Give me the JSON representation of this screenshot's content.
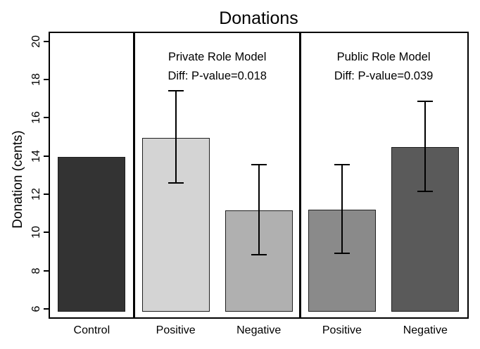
{
  "chart_data": {
    "type": "bar",
    "title": "Donations",
    "ylabel": "Donation (cents)",
    "xlabel": "",
    "ylim": [
      5.5,
      20.5
    ],
    "yticks": [
      6,
      8,
      10,
      12,
      14,
      16,
      18,
      20
    ],
    "grid": false,
    "legend_position": "none",
    "background": "#ffffff",
    "axis_color": "#000000",
    "panels": [
      {
        "header": "",
        "subheader": "",
        "bars": [
          {
            "category": "Control",
            "value": 13.95,
            "ci_low": null,
            "ci_high": null,
            "fill": "#333333"
          }
        ]
      },
      {
        "header": "Private Role Model",
        "subheader": "Diff: P-value=0.018",
        "bars": [
          {
            "category": "Positive",
            "value": 14.95,
            "ci_low": 12.6,
            "ci_high": 17.4,
            "fill": "#d4d4d4"
          },
          {
            "category": "Negative",
            "value": 11.15,
            "ci_low": 8.85,
            "ci_high": 13.55,
            "fill": "#b0b0b0"
          }
        ]
      },
      {
        "header": "Public Role Model",
        "subheader": "Diff: P-value=0.039",
        "bars": [
          {
            "category": "Positive",
            "value": 11.2,
            "ci_low": 8.9,
            "ci_high": 13.55,
            "fill": "#8a8a8a"
          },
          {
            "category": "Negative",
            "value": 14.45,
            "ci_low": 12.15,
            "ci_high": 16.85,
            "fill": "#5a5a5a"
          }
        ]
      }
    ]
  }
}
